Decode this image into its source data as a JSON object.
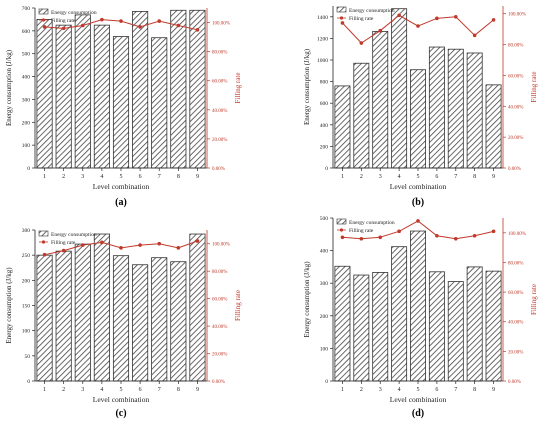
{
  "colors": {
    "bar_edge": "#333333",
    "hatch": "#444444",
    "axis": "#222222",
    "filling": "#c0392b"
  },
  "chart_data": [
    {
      "panel": "(a)",
      "type": "bar",
      "categories": [
        "1",
        "2",
        "3",
        "4",
        "5",
        "6",
        "7",
        "8",
        "9"
      ],
      "xlabel": "Level combination",
      "ylabel": "Energy consumption (J/kg)",
      "y2label": "Filling rate",
      "ylim": [
        0,
        700
      ],
      "y_ticks": [
        "0",
        "100",
        "200",
        "300",
        "400",
        "500",
        "600",
        "700"
      ],
      "y2lim": [
        0,
        110
      ],
      "y2_ticks": [
        "0.00%",
        "20.00%",
        "40.00%",
        "60.00%",
        "80.00%",
        "100.00%"
      ],
      "legend": [
        "Energy consumption",
        "Filling rate"
      ],
      "legend_position": "top-left",
      "series": [
        {
          "name": "Energy consumption",
          "type": "bar",
          "values": [
            650,
            625,
            670,
            625,
            575,
            685,
            570,
            690,
            690
          ]
        },
        {
          "name": "Filling rate",
          "type": "line",
          "axis": "right",
          "values": [
            97,
            96,
            98,
            102,
            101,
            97,
            101,
            98,
            95
          ]
        }
      ]
    },
    {
      "panel": "(b)",
      "type": "bar",
      "categories": [
        "1",
        "2",
        "3",
        "4",
        "5",
        "6",
        "7",
        "8",
        "9"
      ],
      "xlabel": "Level combination",
      "ylabel": "Energy consumption (J/kg)",
      "y2label": "Filling rate",
      "ylim": [
        0,
        1500
      ],
      "y_ticks": [
        "0",
        "200",
        "400",
        "600",
        "800",
        "1000",
        "1200",
        "1400"
      ],
      "y2lim": [
        0,
        105
      ],
      "y2_ticks": [
        "0.00%",
        "20.00%",
        "40.00%",
        "60.00%",
        "80.00%",
        "100.00%"
      ],
      "legend": [
        "Energy consumption",
        "Filling rate"
      ],
      "legend_position": "top-left",
      "series": [
        {
          "name": "Energy consumption",
          "type": "bar",
          "values": [
            760,
            970,
            1265,
            1475,
            910,
            1120,
            1100,
            1065,
            770
          ]
        },
        {
          "name": "Filling rate",
          "type": "line",
          "axis": "right",
          "values": [
            94,
            81,
            89,
            99,
            92,
            97,
            98,
            86,
            96
          ]
        }
      ]
    },
    {
      "panel": "(c)",
      "type": "bar",
      "categories": [
        "1",
        "2",
        "3",
        "4",
        "5",
        "6",
        "7",
        "8",
        "9"
      ],
      "xlabel": "Level combination",
      "ylabel": "Energy consumption (J/kg)",
      "y2label": "Filling rate",
      "ylim": [
        0,
        300
      ],
      "y_ticks": [
        "0",
        "50",
        "100",
        "150",
        "200",
        "250",
        "300"
      ],
      "y2lim": [
        0,
        110
      ],
      "y2_ticks": [
        "0.00%",
        "20.00%",
        "40.00%",
        "60.00%",
        "80.00%",
        "100.00%"
      ],
      "legend": [
        "Energy consumption",
        "Filling rate"
      ],
      "legend_position": "top-left",
      "series": [
        {
          "name": "Energy consumption",
          "type": "bar",
          "values": [
            250,
            258,
            272,
            292,
            249,
            231,
            245,
            237,
            292
          ]
        },
        {
          "name": "Filling rate",
          "type": "line",
          "axis": "right",
          "values": [
            92,
            95,
            99,
            101,
            97,
            99,
            100,
            97,
            102
          ]
        }
      ]
    },
    {
      "panel": "(d)",
      "type": "bar",
      "categories": [
        "1",
        "2",
        "3",
        "4",
        "5",
        "6",
        "7",
        "8",
        "9"
      ],
      "xlabel": "Level combination",
      "ylabel": "Energy consumption (J/kg)",
      "y2label": "Filling rate",
      "ylim": [
        0,
        500
      ],
      "y_ticks": [
        "0",
        "100",
        "200",
        "300",
        "400",
        "500"
      ],
      "y2lim": [
        0,
        110
      ],
      "y2_ticks": [
        "0.00%",
        "20.00%",
        "40.00%",
        "60.00%",
        "80.00%",
        "100.00%"
      ],
      "legend": [
        "Energy consumption",
        "Filling rate"
      ],
      "legend_position": "top-left",
      "series": [
        {
          "name": "Energy consumption",
          "type": "bar",
          "values": [
            352,
            325,
            333,
            412,
            460,
            335,
            305,
            350,
            337
          ]
        },
        {
          "name": "Filling rate",
          "type": "line",
          "axis": "right",
          "values": [
            97,
            96,
            97,
            101,
            108,
            98,
            96,
            98,
            101
          ]
        }
      ]
    }
  ]
}
